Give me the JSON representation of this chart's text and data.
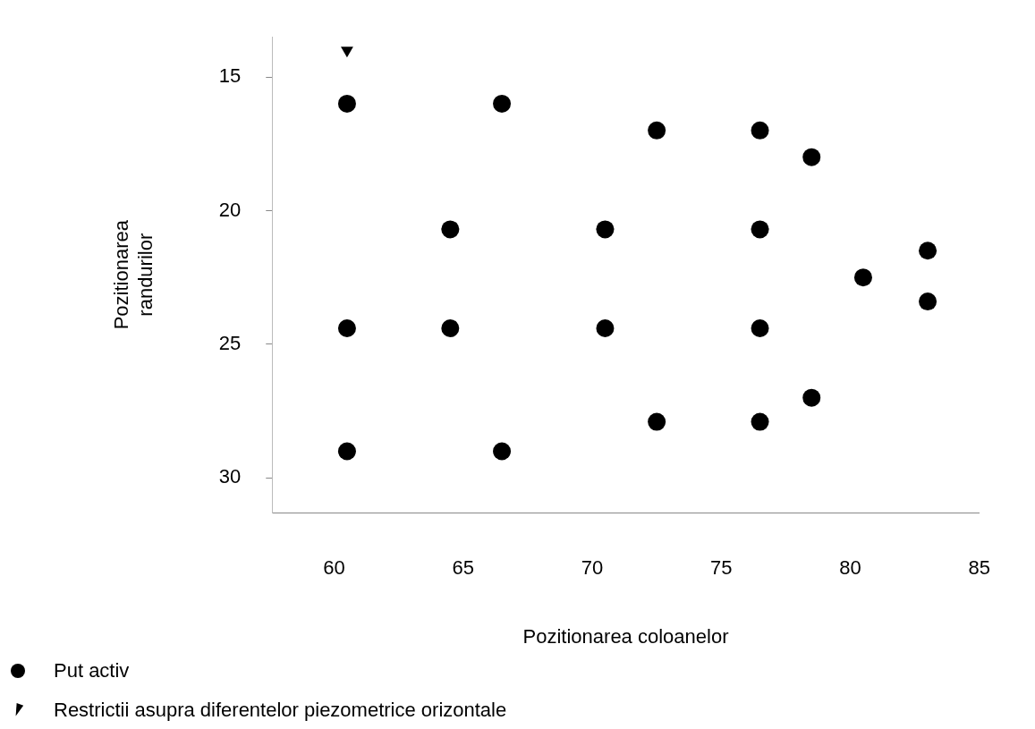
{
  "chart_data": {
    "type": "scatter",
    "xlabel": "Pozitionarea coloanelor",
    "ylabel": "Pozitionarea randurilor",
    "xlim": [
      57.6,
      85
    ],
    "xticks": [
      60,
      65,
      70,
      75,
      80,
      85
    ],
    "ylim": [
      31.3,
      13.5
    ],
    "yticks": [
      15,
      20,
      25,
      30
    ],
    "grid": false,
    "legend": "bottom left",
    "series": [
      {
        "name": "Put activ",
        "color": "#000000",
        "marker": "circle",
        "x": [
          60.5,
          66.5,
          72.5,
          76.5,
          78.5,
          64.5,
          70.5,
          76.5,
          83,
          80.5,
          83,
          60.5,
          64.5,
          70.5,
          76.5,
          78.5,
          72.5,
          76.5,
          60.5,
          66.5
        ],
        "values": [
          16,
          16,
          17,
          17,
          18,
          20.7,
          20.7,
          20.7,
          21.5,
          22.5,
          23.4,
          24.4,
          24.4,
          24.4,
          24.4,
          27,
          27.9,
          27.9,
          29,
          29
        ]
      },
      {
        "name": "Restrictii asupra diferentelor piezometrice orizontale",
        "color": "#000000",
        "marker": "triangle",
        "x": [
          60.5
        ],
        "values": [
          14
        ]
      }
    ]
  }
}
